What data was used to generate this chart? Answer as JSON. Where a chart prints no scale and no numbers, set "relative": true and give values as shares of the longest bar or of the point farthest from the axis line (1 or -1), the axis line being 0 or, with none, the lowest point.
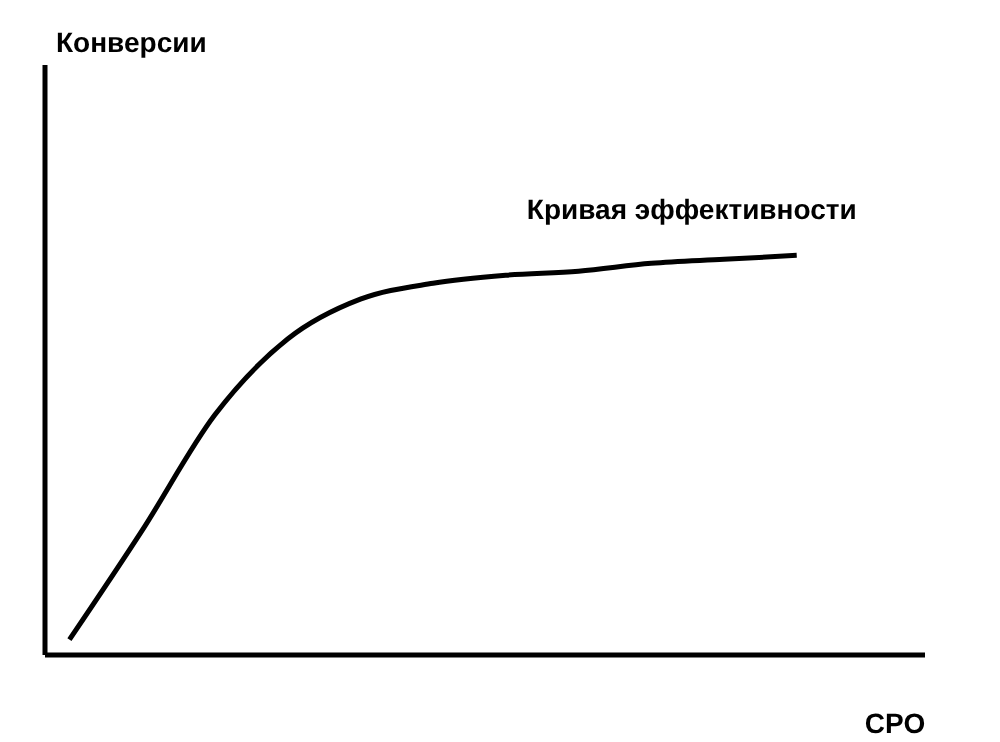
{
  "chart_data": {
    "type": "line",
    "relative": true,
    "xlabel": "CPO",
    "annotations": [
      "Конверсии"
    ],
    "categories": [
      null,
      null,
      null,
      null,
      null,
      null,
      null,
      null,
      null,
      null,
      null
    ],
    "series": [
      {
        "name": "Кривая эффективности",
        "color": "#000000",
        "values": [
          0.036,
          0.31,
          0.6,
          0.79,
          0.89,
          0.93,
          0.95,
          0.96,
          0.98,
          0.99,
          1
        ]
      }
    ],
    "grid": false,
    "legend": false,
    "marker": "none",
    "line_style": "solid"
  }
}
